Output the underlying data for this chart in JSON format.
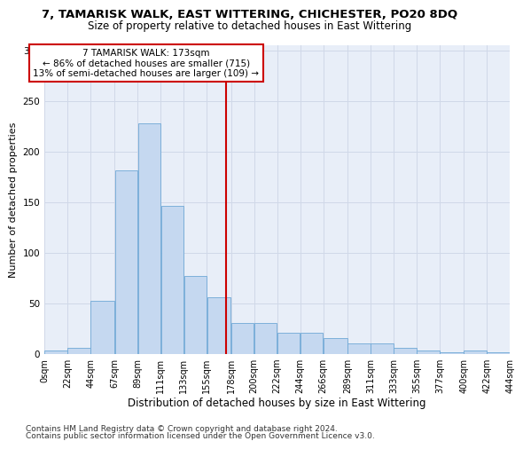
{
  "title1": "7, TAMARISK WALK, EAST WITTERING, CHICHESTER, PO20 8DQ",
  "title2": "Size of property relative to detached houses in East Wittering",
  "xlabel": "Distribution of detached houses by size in East Wittering",
  "ylabel": "Number of detached properties",
  "footnote1": "Contains HM Land Registry data © Crown copyright and database right 2024.",
  "footnote2": "Contains public sector information licensed under the Open Government Licence v3.0.",
  "annotation_title": "7 TAMARISK WALK: 173sqm",
  "annotation_line1": "← 86% of detached houses are smaller (715)",
  "annotation_line2": "13% of semi-detached houses are larger (109) →",
  "property_size": 173,
  "bin_edges": [
    0,
    22,
    44,
    67,
    89,
    111,
    133,
    155,
    178,
    200,
    222,
    244,
    266,
    289,
    311,
    333,
    355,
    377,
    400,
    422,
    444
  ],
  "bar_values": [
    3,
    6,
    52,
    181,
    228,
    146,
    77,
    56,
    30,
    30,
    21,
    21,
    15,
    10,
    10,
    6,
    3,
    1,
    3,
    1
  ],
  "bar_color": "#c5d8f0",
  "bar_edge_color": "#6fa8d6",
  "vline_color": "#cc0000",
  "annotation_box_edgecolor": "#cc0000",
  "grid_color": "#d0d8e8",
  "background_color": "#e8eef8",
  "ylim": [
    0,
    305
  ],
  "yticks": [
    0,
    50,
    100,
    150,
    200,
    250,
    300
  ],
  "tick_labels": [
    "0sqm",
    "22sqm",
    "44sqm",
    "67sqm",
    "89sqm",
    "111sqm",
    "133sqm",
    "155sqm",
    "178sqm",
    "200sqm",
    "222sqm",
    "244sqm",
    "266sqm",
    "289sqm",
    "311sqm",
    "333sqm",
    "355sqm",
    "377sqm",
    "400sqm",
    "422sqm",
    "444sqm"
  ],
  "title1_fontsize": 9.5,
  "title2_fontsize": 8.5,
  "xlabel_fontsize": 8.5,
  "ylabel_fontsize": 8,
  "tick_fontsize": 7,
  "annotation_fontsize": 7.5,
  "footnote_fontsize": 6.5
}
